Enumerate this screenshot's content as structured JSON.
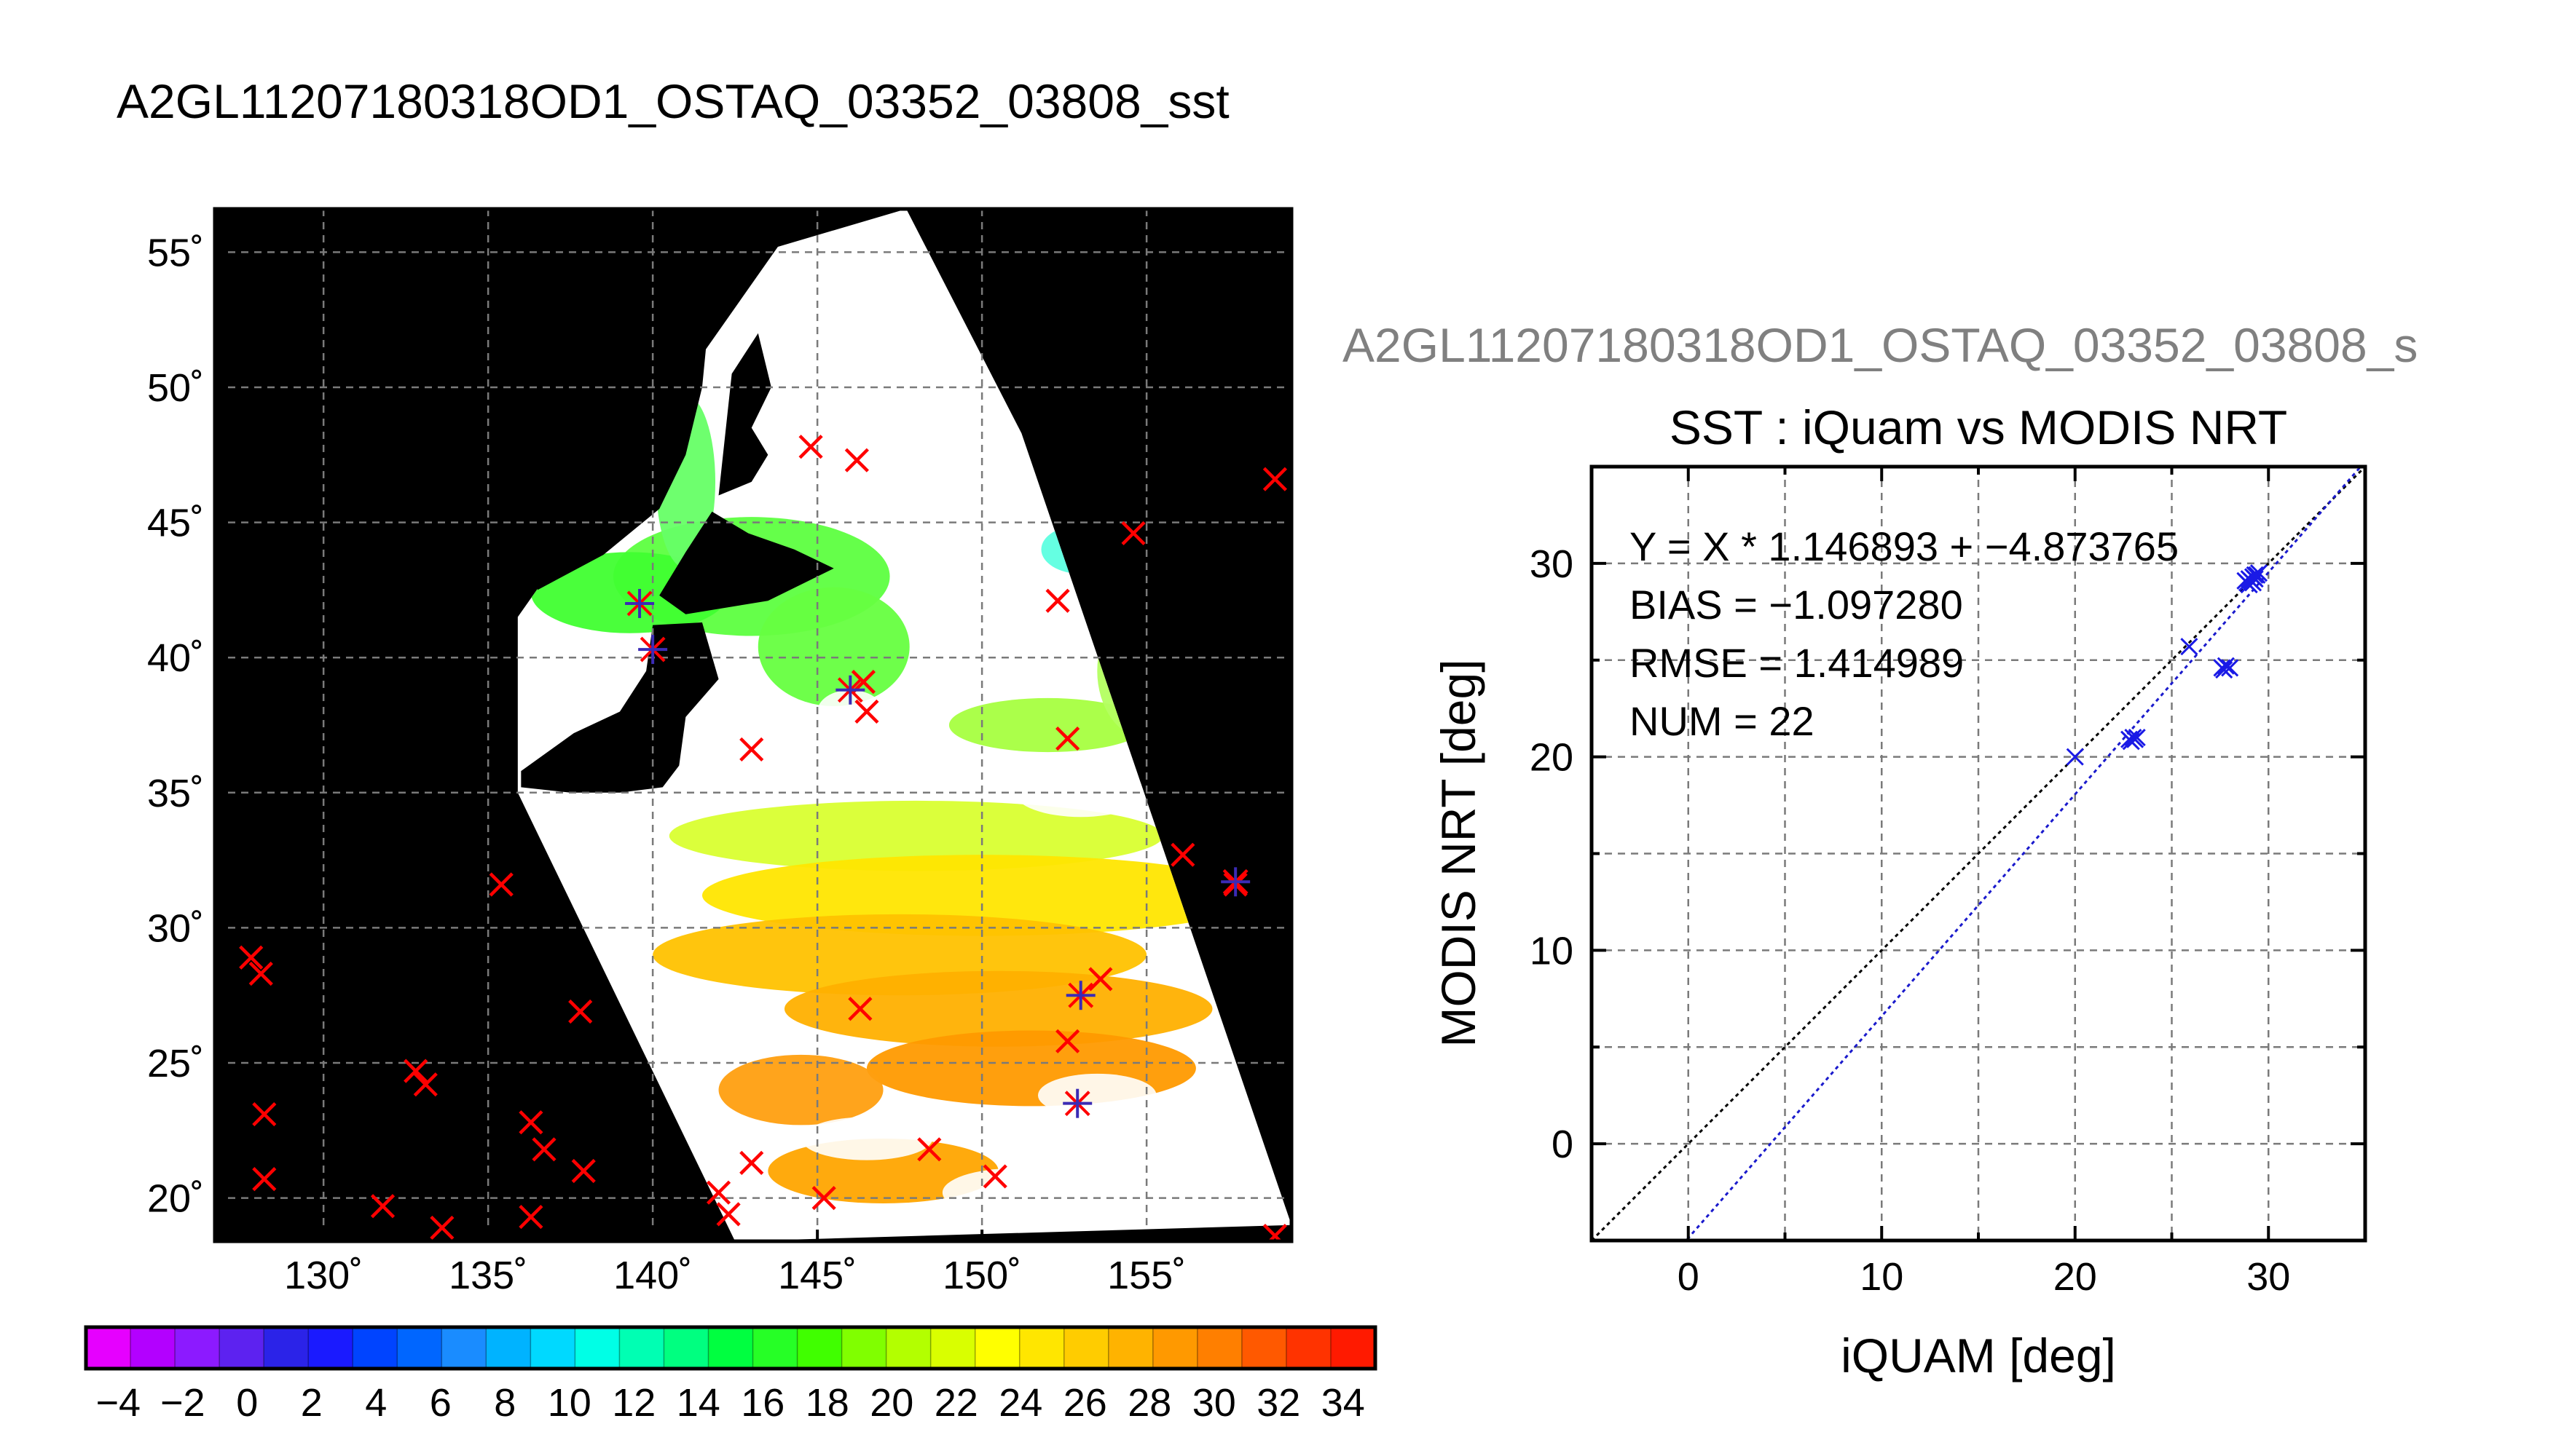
{
  "page": {
    "title": "A2GL11207180318OD1_OSTAQ_03352_03808_sst",
    "scatter_header": "A2GL11207180318OD1_OSTAQ_03352_03808_s"
  },
  "chart_data": [
    {
      "type": "heatmap",
      "subtype": "geographic-map",
      "title": "A2GL11207180318OD1_OSTAQ_03352_03808_sst",
      "x_tick_labels": [
        "130˚",
        "135˚",
        "140˚",
        "145˚",
        "150˚",
        "155˚"
      ],
      "x_ticks": [
        130,
        135,
        140,
        145,
        150,
        155
      ],
      "y_tick_labels": [
        "20˚",
        "25˚",
        "30˚",
        "35˚",
        "40˚",
        "45˚",
        "50˚",
        "55˚"
      ],
      "y_ticks": [
        20,
        25,
        30,
        35,
        40,
        45,
        50,
        55
      ],
      "xlim": [
        126.7,
        159.4
      ],
      "ylim": [
        18.4,
        56.6
      ],
      "grid": true,
      "swath_corners_lonlat": [
        [
          135.9,
          41.5
        ],
        [
          143.8,
          55.2
        ],
        [
          147.7,
          56.6
        ],
        [
          151.2,
          48.3
        ],
        [
          159.4,
          19.0
        ],
        [
          142.5,
          18.4
        ],
        [
          135.9,
          35.0
        ]
      ],
      "colorbar": {
        "min": -5,
        "max": 35,
        "tick_labels": [
          "−4",
          "−2",
          "0",
          "2",
          "4",
          "6",
          "8",
          "10",
          "12",
          "14",
          "16",
          "18",
          "20",
          "22",
          "24",
          "26",
          "28",
          "30",
          "32",
          "34"
        ],
        "ticks": [
          -4,
          -2,
          0,
          2,
          4,
          6,
          8,
          10,
          12,
          14,
          16,
          18,
          20,
          22,
          24,
          26,
          28,
          30,
          32,
          34
        ],
        "colors": [
          "#e600ff",
          "#b300ff",
          "#8c1aff",
          "#5d22f0",
          "#2b23e8",
          "#1a1aff",
          "#0044ff",
          "#0066ff",
          "#1a8cff",
          "#00b3ff",
          "#00d9ff",
          "#00ffe6",
          "#00ffb3",
          "#00ff80",
          "#00ff40",
          "#26ff26",
          "#40ff00",
          "#80ff00",
          "#b3ff00",
          "#d9ff00",
          "#ffff00",
          "#ffe600",
          "#ffcc00",
          "#ffb300",
          "#ff9900",
          "#ff7f00",
          "#ff5900",
          "#ff3300",
          "#ff1a00"
        ]
      },
      "sst_field_blobs": [
        {
          "lon": 143.0,
          "lat": 43.0,
          "rlon": 4.2,
          "rlat": 2.2,
          "color": "#5dff40"
        },
        {
          "lon": 139.3,
          "lat": 42.4,
          "rlon": 3.0,
          "rlat": 1.5,
          "color": "#40ff30"
        },
        {
          "lon": 145.5,
          "lat": 40.4,
          "rlon": 2.3,
          "rlat": 2.2,
          "color": "#66ff40"
        },
        {
          "lon": 141.0,
          "lat": 46.5,
          "rlon": 0.9,
          "rlat": 3.2,
          "color": "#66ff66"
        },
        {
          "lon": 153.0,
          "lat": 44.0,
          "rlon": 1.2,
          "rlat": 0.9,
          "color": "#5dffe0"
        },
        {
          "lon": 152.0,
          "lat": 37.5,
          "rlon": 3.0,
          "rlat": 1.0,
          "color": "#a6ff40"
        },
        {
          "lon": 155.0,
          "lat": 39.5,
          "rlon": 1.5,
          "rlat": 2.5,
          "color": "#b3ff60"
        },
        {
          "lon": 148.0,
          "lat": 33.4,
          "rlon": 7.5,
          "rlat": 1.3,
          "color": "#d9ff30"
        },
        {
          "lon": 150.0,
          "lat": 31.2,
          "rlon": 8.5,
          "rlat": 1.5,
          "color": "#ffe600"
        },
        {
          "lon": 147.5,
          "lat": 29.0,
          "rlon": 7.5,
          "rlat": 1.5,
          "color": "#ffc200"
        },
        {
          "lon": 150.5,
          "lat": 27.0,
          "rlon": 6.5,
          "rlat": 1.4,
          "color": "#ffb000"
        },
        {
          "lon": 151.5,
          "lat": 24.8,
          "rlon": 5.0,
          "rlat": 1.4,
          "color": "#ff9a00"
        },
        {
          "lon": 144.5,
          "lat": 24.0,
          "rlon": 2.5,
          "rlat": 1.3,
          "color": "#ff9f10"
        },
        {
          "lon": 147.0,
          "lat": 21.0,
          "rlon": 3.5,
          "rlat": 1.2,
          "color": "#ffa500"
        }
      ],
      "cloud_blobs": [
        {
          "lon": 145.5,
          "lat": 51.6,
          "rlon": 1.5,
          "rlat": 0.9
        },
        {
          "lon": 149.5,
          "lat": 49.4,
          "rlon": 1.2,
          "rlat": 0.7
        },
        {
          "lon": 146.0,
          "lat": 38.0,
          "rlon": 1.0,
          "rlat": 0.8
        },
        {
          "lon": 141.5,
          "lat": 37.0,
          "rlon": 1.6,
          "rlat": 0.9
        },
        {
          "lon": 153.0,
          "lat": 35.0,
          "rlon": 2.0,
          "rlat": 0.9
        },
        {
          "lon": 146.5,
          "lat": 22.2,
          "rlon": 2.0,
          "rlat": 0.8
        },
        {
          "lon": 153.5,
          "lat": 23.8,
          "rlon": 1.8,
          "rlat": 0.8
        },
        {
          "lon": 151.0,
          "lat": 20.2,
          "rlon": 2.2,
          "rlat": 0.9
        }
      ],
      "land_polygons": [
        [
          [
            136.0,
            52.0
          ],
          [
            140.3,
            53.4
          ],
          [
            141.7,
            52.5
          ],
          [
            141.5,
            50.0
          ],
          [
            141.0,
            47.5
          ],
          [
            140.2,
            45.5
          ],
          [
            138.5,
            43.8
          ],
          [
            136.5,
            42.5
          ]
        ],
        [
          [
            142.0,
            46.0
          ],
          [
            142.4,
            50.5
          ],
          [
            143.2,
            52.0
          ],
          [
            143.6,
            50.0
          ],
          [
            143.0,
            48.5
          ],
          [
            143.5,
            47.5
          ],
          [
            143.0,
            46.5
          ]
        ],
        [
          [
            140.2,
            42.3
          ],
          [
            141.0,
            43.9
          ],
          [
            141.8,
            45.4
          ],
          [
            142.9,
            44.6
          ],
          [
            144.3,
            44.0
          ],
          [
            145.5,
            43.3
          ],
          [
            143.5,
            42.1
          ],
          [
            141.0,
            41.6
          ]
        ],
        [
          [
            140.0,
            41.2
          ],
          [
            141.5,
            41.3
          ],
          [
            142.0,
            39.2
          ],
          [
            141.0,
            37.8
          ],
          [
            140.8,
            36.0
          ],
          [
            140.3,
            35.2
          ],
          [
            139.0,
            35.0
          ],
          [
            137.5,
            35.0
          ],
          [
            136.0,
            35.2
          ],
          [
            136.0,
            35.8
          ],
          [
            137.6,
            37.2
          ],
          [
            139.0,
            38.0
          ],
          [
            139.8,
            39.5
          ]
        ]
      ],
      "match_markers_red": [
        [
          144.8,
          47.8
        ],
        [
          146.2,
          47.3
        ],
        [
          158.9,
          46.6
        ],
        [
          154.6,
          44.6
        ],
        [
          152.3,
          42.1
        ],
        [
          146.4,
          39.1
        ],
        [
          146.5,
          38.0
        ],
        [
          143.0,
          36.6
        ],
        [
          152.6,
          37.0
        ],
        [
          156.1,
          32.7
        ],
        [
          157.7,
          31.6
        ],
        [
          135.4,
          31.6
        ],
        [
          127.8,
          28.9
        ],
        [
          128.1,
          28.3
        ],
        [
          137.8,
          26.9
        ],
        [
          146.3,
          27.0
        ],
        [
          153.6,
          28.1
        ],
        [
          152.6,
          25.8
        ],
        [
          132.8,
          24.7
        ],
        [
          133.1,
          24.2
        ],
        [
          128.2,
          23.1
        ],
        [
          136.3,
          22.8
        ],
        [
          136.7,
          21.8
        ],
        [
          137.9,
          21.0
        ],
        [
          128.2,
          20.7
        ],
        [
          143.0,
          21.3
        ],
        [
          148.4,
          21.8
        ],
        [
          150.4,
          20.8
        ],
        [
          142.0,
          20.2
        ],
        [
          131.8,
          19.7
        ],
        [
          142.3,
          19.4
        ],
        [
          133.6,
          18.9
        ],
        [
          136.3,
          19.3
        ],
        [
          145.2,
          20.0
        ],
        [
          158.9,
          18.6
        ]
      ],
      "match_markers_purple": [
        [
          139.6,
          42.0
        ],
        [
          140.0,
          40.3
        ],
        [
          146.0,
          38.8
        ],
        [
          157.7,
          31.7
        ],
        [
          153.0,
          27.5
        ],
        [
          152.9,
          23.5
        ]
      ]
    },
    {
      "type": "scatter",
      "title": "SST : iQuam vs MODIS NRT",
      "xlabel": "iQUAM [deg]",
      "ylabel": "MODIS NRT [deg]",
      "xlim": [
        -5,
        35
      ],
      "ylim": [
        -5,
        35
      ],
      "x_ticks": [
        0,
        10,
        20,
        30
      ],
      "y_ticks": [
        0,
        10,
        20,
        30
      ],
      "grid": true,
      "regression_text": "Y = X * 1.146893 + −4.873765",
      "bias_text": "BIAS = −1.097280",
      "rmse_text": "RMSE = 1.414989",
      "num_text": "NUM = 22",
      "slope": 1.146893,
      "intercept": -4.873765,
      "points": [
        [
          20.0,
          20.0
        ],
        [
          22.8,
          20.9
        ],
        [
          23.0,
          21.0
        ],
        [
          23.1,
          20.9
        ],
        [
          22.9,
          20.8
        ],
        [
          23.2,
          21.0
        ],
        [
          25.9,
          25.7
        ],
        [
          27.6,
          24.6
        ],
        [
          27.8,
          24.7
        ],
        [
          28.0,
          24.6
        ],
        [
          27.7,
          24.5
        ],
        [
          28.8,
          29.1
        ],
        [
          29.0,
          29.2
        ],
        [
          29.2,
          29.3
        ],
        [
          29.4,
          29.4
        ],
        [
          28.9,
          29.0
        ],
        [
          29.3,
          29.2
        ],
        [
          29.1,
          29.1
        ],
        [
          29.5,
          29.5
        ],
        [
          29.0,
          28.9
        ],
        [
          29.3,
          29.4
        ],
        [
          29.2,
          29.0
        ]
      ]
    }
  ]
}
